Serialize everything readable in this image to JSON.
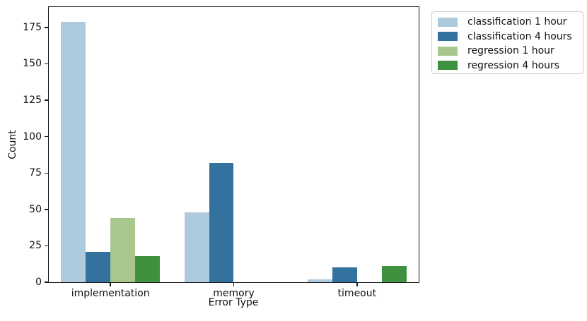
{
  "chart_data": {
    "type": "bar",
    "title": "",
    "xlabel": "Error Type",
    "ylabel": "Count",
    "categories": [
      "implementation",
      "memory",
      "timeout"
    ],
    "series": [
      {
        "name": "classification 1 hour",
        "color": "#adcbdc",
        "values": [
          179,
          48,
          2
        ]
      },
      {
        "name": "classification 4 hours",
        "color": "#33729f",
        "values": [
          21,
          82,
          10
        ]
      },
      {
        "name": "regression 1 hour",
        "color": "#a9c78c",
        "values": [
          44,
          0,
          0
        ]
      },
      {
        "name": "regression 4 hours",
        "color": "#3f9140",
        "values": [
          18,
          0,
          11
        ]
      }
    ],
    "yticks": [
      0,
      25,
      50,
      75,
      100,
      125,
      150,
      175
    ],
    "ylim": [
      0,
      189
    ],
    "grid": false,
    "group_width_fraction": 0.8,
    "legend_position": "outside-right",
    "spine_color": "#1a1a1a",
    "background_color": "#ffffff"
  }
}
